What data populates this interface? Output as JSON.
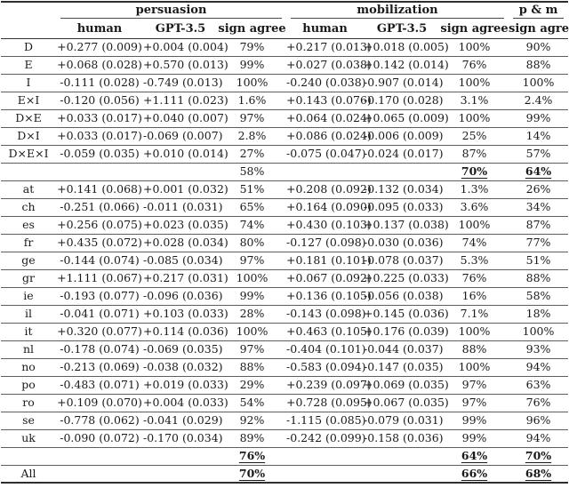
{
  "table": {
    "column_groups": [
      {
        "label": "persuasion",
        "span": 3
      },
      {
        "label": "mobilization",
        "span": 3
      },
      {
        "label": "p & m",
        "span": 1
      }
    ],
    "subheaders": [
      "human",
      "GPT-3.5",
      "sign agree",
      "human",
      "GPT-3.5",
      "sign agree",
      "sign agree"
    ],
    "rows": [
      {
        "type": "effect",
        "label": "D",
        "cells": [
          "+0.277 (0.009)",
          "+0.004 (0.004)",
          "79%",
          "+0.217 (0.013)",
          "+0.018 (0.005)",
          "100%",
          "90%"
        ],
        "emphasis": []
      },
      {
        "type": "effect",
        "label": "E",
        "cells": [
          "+0.068 (0.028)",
          "+0.570 (0.013)",
          "99%",
          "+0.027 (0.038)",
          "+0.142 (0.014)",
          "76%",
          "88%"
        ],
        "emphasis": []
      },
      {
        "type": "effect",
        "label": "I",
        "cells": [
          "-0.111 (0.028)",
          "-0.749 (0.013)",
          "100%",
          "-0.240 (0.038)",
          "-0.907 (0.014)",
          "100%",
          "100%"
        ],
        "emphasis": []
      },
      {
        "type": "effect",
        "label": "E×I",
        "cells": [
          "-0.120 (0.056)",
          "+1.111 (0.023)",
          "1.6%",
          "+0.143 (0.076)",
          "-0.170 (0.028)",
          "3.1%",
          "2.4%"
        ],
        "emphasis": []
      },
      {
        "type": "effect",
        "label": "D×E",
        "cells": [
          "+0.033 (0.017)",
          "+0.040 (0.007)",
          "97%",
          "+0.064 (0.024)",
          "+0.065 (0.009)",
          "100%",
          "99%"
        ],
        "emphasis": []
      },
      {
        "type": "effect",
        "label": "D×I",
        "cells": [
          "+0.033 (0.017)",
          "-0.069 (0.007)",
          "2.8%",
          "+0.086 (0.024)",
          "-0.006 (0.009)",
          "25%",
          "14%"
        ],
        "emphasis": []
      },
      {
        "type": "effect",
        "label": "D×E×I",
        "cells": [
          "-0.059 (0.035)",
          "+0.010 (0.014)",
          "27%",
          "-0.075 (0.047)",
          "-0.024 (0.017)",
          "87%",
          "57%"
        ],
        "emphasis": []
      },
      {
        "type": "summary",
        "label": "",
        "cells": [
          "",
          "",
          "58%",
          "",
          "",
          "70%",
          "64%"
        ],
        "emphasis": [
          5,
          6
        ]
      },
      {
        "type": "country",
        "label": "at",
        "cells": [
          "+0.141 (0.068)",
          "+0.001 (0.032)",
          "51%",
          "+0.208 (0.092)",
          "-0.132 (0.034)",
          "1.3%",
          "26%"
        ],
        "emphasis": []
      },
      {
        "type": "country",
        "label": "ch",
        "cells": [
          "-0.251 (0.066)",
          "-0.011 (0.031)",
          "65%",
          "+0.164 (0.090)",
          "-0.095 (0.033)",
          "3.6%",
          "34%"
        ],
        "emphasis": []
      },
      {
        "type": "country",
        "label": "es",
        "cells": [
          "+0.256 (0.075)",
          "+0.023 (0.035)",
          "74%",
          "+0.430 (0.103)",
          "+0.137 (0.038)",
          "100%",
          "87%"
        ],
        "emphasis": []
      },
      {
        "type": "country",
        "label": "fr",
        "cells": [
          "+0.435 (0.072)",
          "+0.028 (0.034)",
          "80%",
          "-0.127 (0.098)",
          "-0.030 (0.036)",
          "74%",
          "77%"
        ],
        "emphasis": []
      },
      {
        "type": "country",
        "label": "ge",
        "cells": [
          "-0.144 (0.074)",
          "-0.085 (0.034)",
          "97%",
          "+0.181 (0.101)",
          "-0.078 (0.037)",
          "5.3%",
          "51%"
        ],
        "emphasis": []
      },
      {
        "type": "country",
        "label": "gr",
        "cells": [
          "+1.111 (0.067)",
          "+0.217 (0.031)",
          "100%",
          "+0.067 (0.092)",
          "+0.225 (0.033)",
          "76%",
          "88%"
        ],
        "emphasis": []
      },
      {
        "type": "country",
        "label": "ie",
        "cells": [
          "-0.193 (0.077)",
          "-0.096 (0.036)",
          "99%",
          "+0.136 (0.105)",
          "-0.056 (0.038)",
          "16%",
          "58%"
        ],
        "emphasis": []
      },
      {
        "type": "country",
        "label": "il",
        "cells": [
          "-0.041 (0.071)",
          "+0.103 (0.033)",
          "28%",
          "-0.143 (0.098)",
          "+0.145 (0.036)",
          "7.1%",
          "18%"
        ],
        "emphasis": []
      },
      {
        "type": "country",
        "label": "it",
        "cells": [
          "+0.320 (0.077)",
          "+0.114 (0.036)",
          "100%",
          "+0.463 (0.105)",
          "+0.176 (0.039)",
          "100%",
          "100%"
        ],
        "emphasis": []
      },
      {
        "type": "country",
        "label": "nl",
        "cells": [
          "-0.178 (0.074)",
          "-0.069 (0.035)",
          "97%",
          "-0.404 (0.101)",
          "-0.044 (0.037)",
          "88%",
          "93%"
        ],
        "emphasis": []
      },
      {
        "type": "country",
        "label": "no",
        "cells": [
          "-0.213 (0.069)",
          "-0.038 (0.032)",
          "88%",
          "-0.583 (0.094)",
          "-0.147 (0.035)",
          "100%",
          "94%"
        ],
        "emphasis": []
      },
      {
        "type": "country",
        "label": "po",
        "cells": [
          "-0.483 (0.071)",
          "+0.019 (0.033)",
          "29%",
          "+0.239 (0.097)",
          "+0.069 (0.035)",
          "97%",
          "63%"
        ],
        "emphasis": []
      },
      {
        "type": "country",
        "label": "ro",
        "cells": [
          "+0.109 (0.070)",
          "+0.004 (0.033)",
          "54%",
          "+0.728 (0.095)",
          "+0.067 (0.035)",
          "97%",
          "76%"
        ],
        "emphasis": []
      },
      {
        "type": "country",
        "label": "se",
        "cells": [
          "-0.778 (0.062)",
          "-0.041 (0.029)",
          "92%",
          "-1.115 (0.085)",
          "-0.079 (0.031)",
          "99%",
          "96%"
        ],
        "emphasis": []
      },
      {
        "type": "country",
        "label": "uk",
        "cells": [
          "-0.090 (0.072)",
          "-0.170 (0.034)",
          "89%",
          "-0.242 (0.099)",
          "-0.158 (0.036)",
          "99%",
          "94%"
        ],
        "emphasis": []
      },
      {
        "type": "summary",
        "label": "",
        "cells": [
          "",
          "",
          "76%",
          "",
          "",
          "64%",
          "70%"
        ],
        "emphasis": [
          2,
          5,
          6
        ]
      },
      {
        "type": "summary",
        "label": "All",
        "cells": [
          "",
          "",
          "70%",
          "",
          "",
          "66%",
          "68%"
        ],
        "emphasis": [
          2,
          5,
          6
        ]
      }
    ],
    "colors": {
      "rule_light": "#5e5e5e",
      "rule_heavy": "#2e2e2e",
      "text": "#1a1a1a",
      "background": "#ffffff"
    }
  }
}
